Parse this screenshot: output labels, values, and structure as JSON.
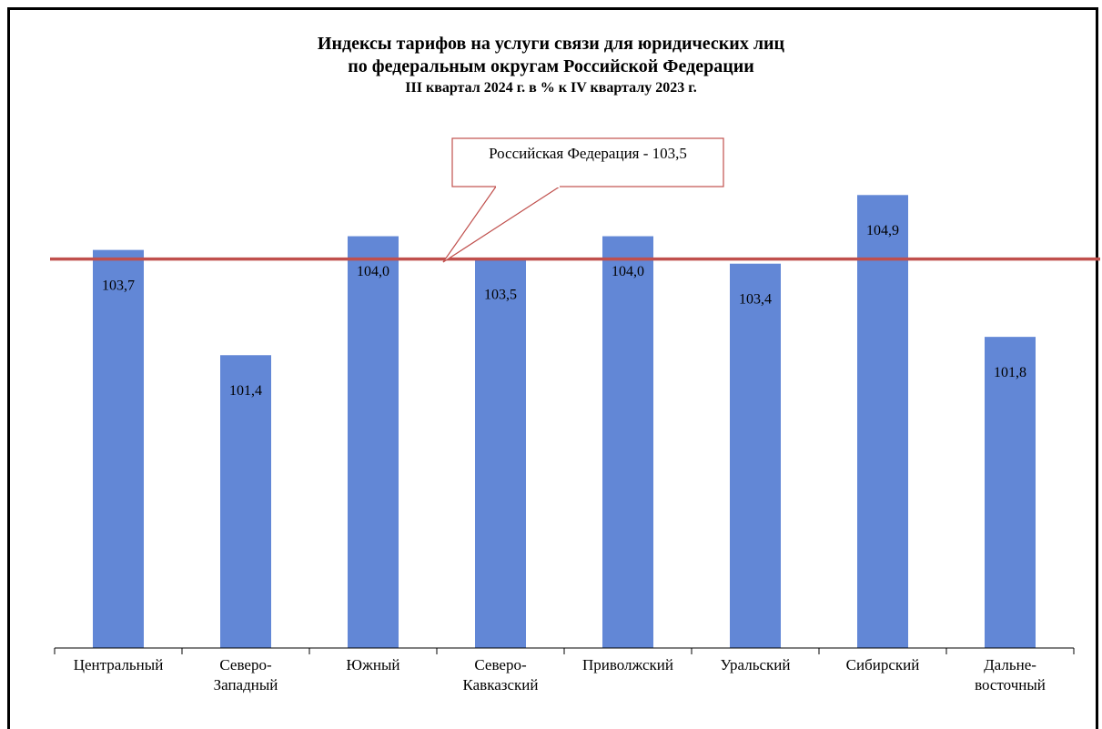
{
  "chart_data": {
    "type": "bar",
    "title": "Индексы тарифов  на услуги связи для юридических  лиц\nпо федеральным  округам  Российской  Федерации",
    "subtitle": "III квартал  2024 г.  в  %  к  IV кварталу  2023 г.",
    "categories": [
      "Центральный",
      "Северо-\nЗападный",
      "Южный",
      "Северо-\nКавказский",
      "Приволжский",
      "Уральский",
      "Сибирский",
      "Дальне-\nвосточный"
    ],
    "values": [
      103.7,
      101.4,
      104.0,
      103.5,
      104.0,
      103.4,
      104.9,
      101.8
    ],
    "value_labels": [
      "103,7",
      "101,4",
      "104,0",
      "103,5",
      "104,0",
      "103,4",
      "104,9",
      "101,8"
    ],
    "color": "#6287d6",
    "ylim": [
      95,
      106
    ],
    "reference_line": {
      "value": 103.5,
      "label": "Российская Федерация - 103,5",
      "color": "#c0504d"
    }
  }
}
